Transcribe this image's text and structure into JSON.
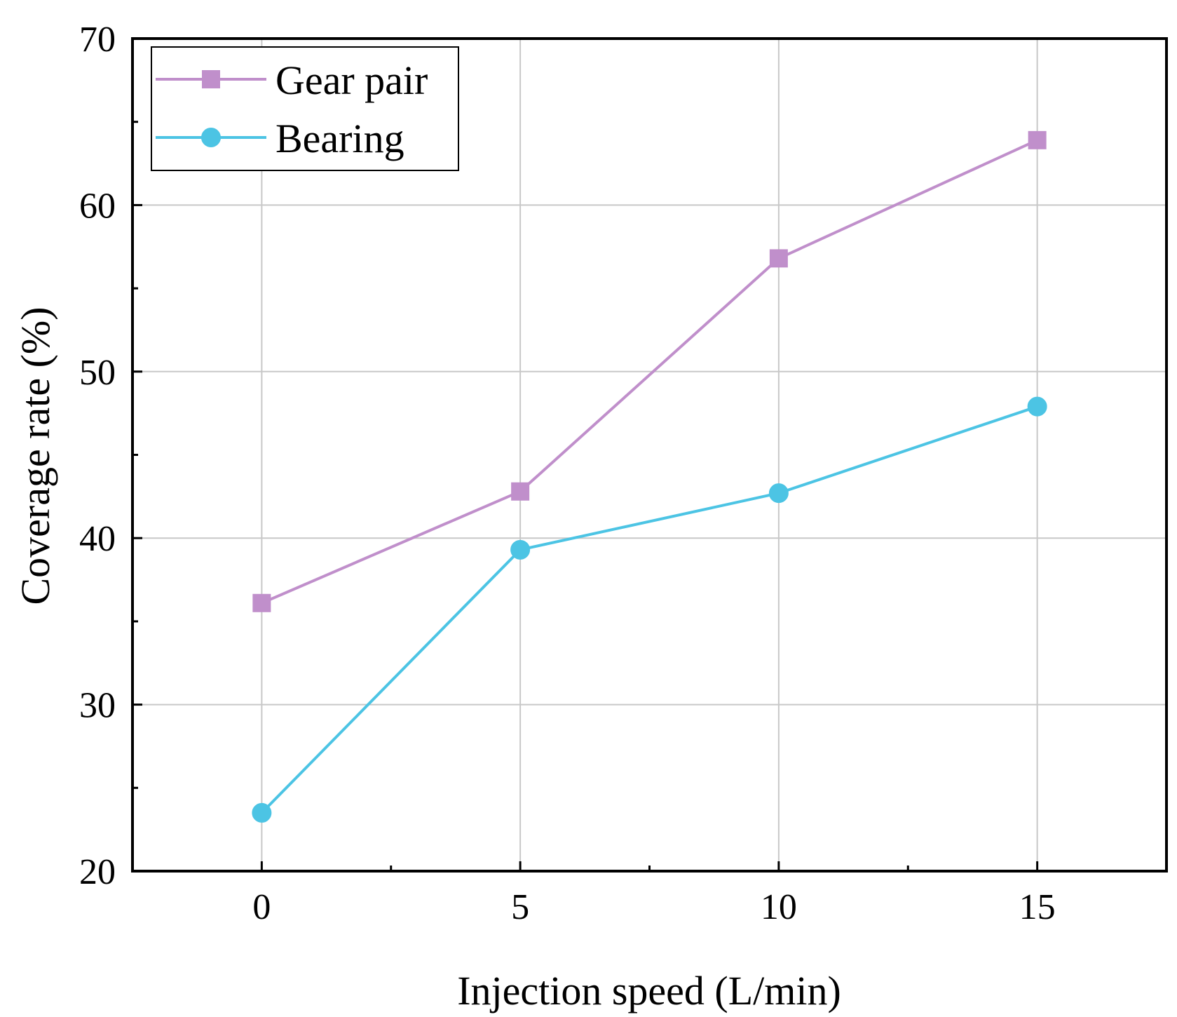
{
  "chart_data": {
    "type": "line",
    "title": "",
    "xlabel": "Injection speed (L/min)",
    "ylabel": "Coverage rate (%)",
    "x": [
      0,
      5,
      10,
      15
    ],
    "xlim": [
      -2.5,
      17.5
    ],
    "ylim": [
      20,
      70
    ],
    "xticks": [
      0,
      5,
      10,
      15
    ],
    "xtick_labels": [
      "0",
      "5",
      "10",
      "15"
    ],
    "yticks": [
      20,
      30,
      40,
      50,
      60,
      70
    ],
    "ytick_labels": [
      "20",
      "30",
      "40",
      "50",
      "60",
      "70"
    ],
    "grid": true,
    "legend_position": "top-left",
    "series": [
      {
        "name": "Gear pair",
        "marker": "square",
        "color": "#c08fcb",
        "values": [
          36.1,
          42.8,
          56.8,
          63.9
        ]
      },
      {
        "name": "Bearing",
        "marker": "circle",
        "color": "#4cc4e4",
        "values": [
          23.5,
          39.3,
          42.7,
          47.9
        ]
      }
    ]
  }
}
